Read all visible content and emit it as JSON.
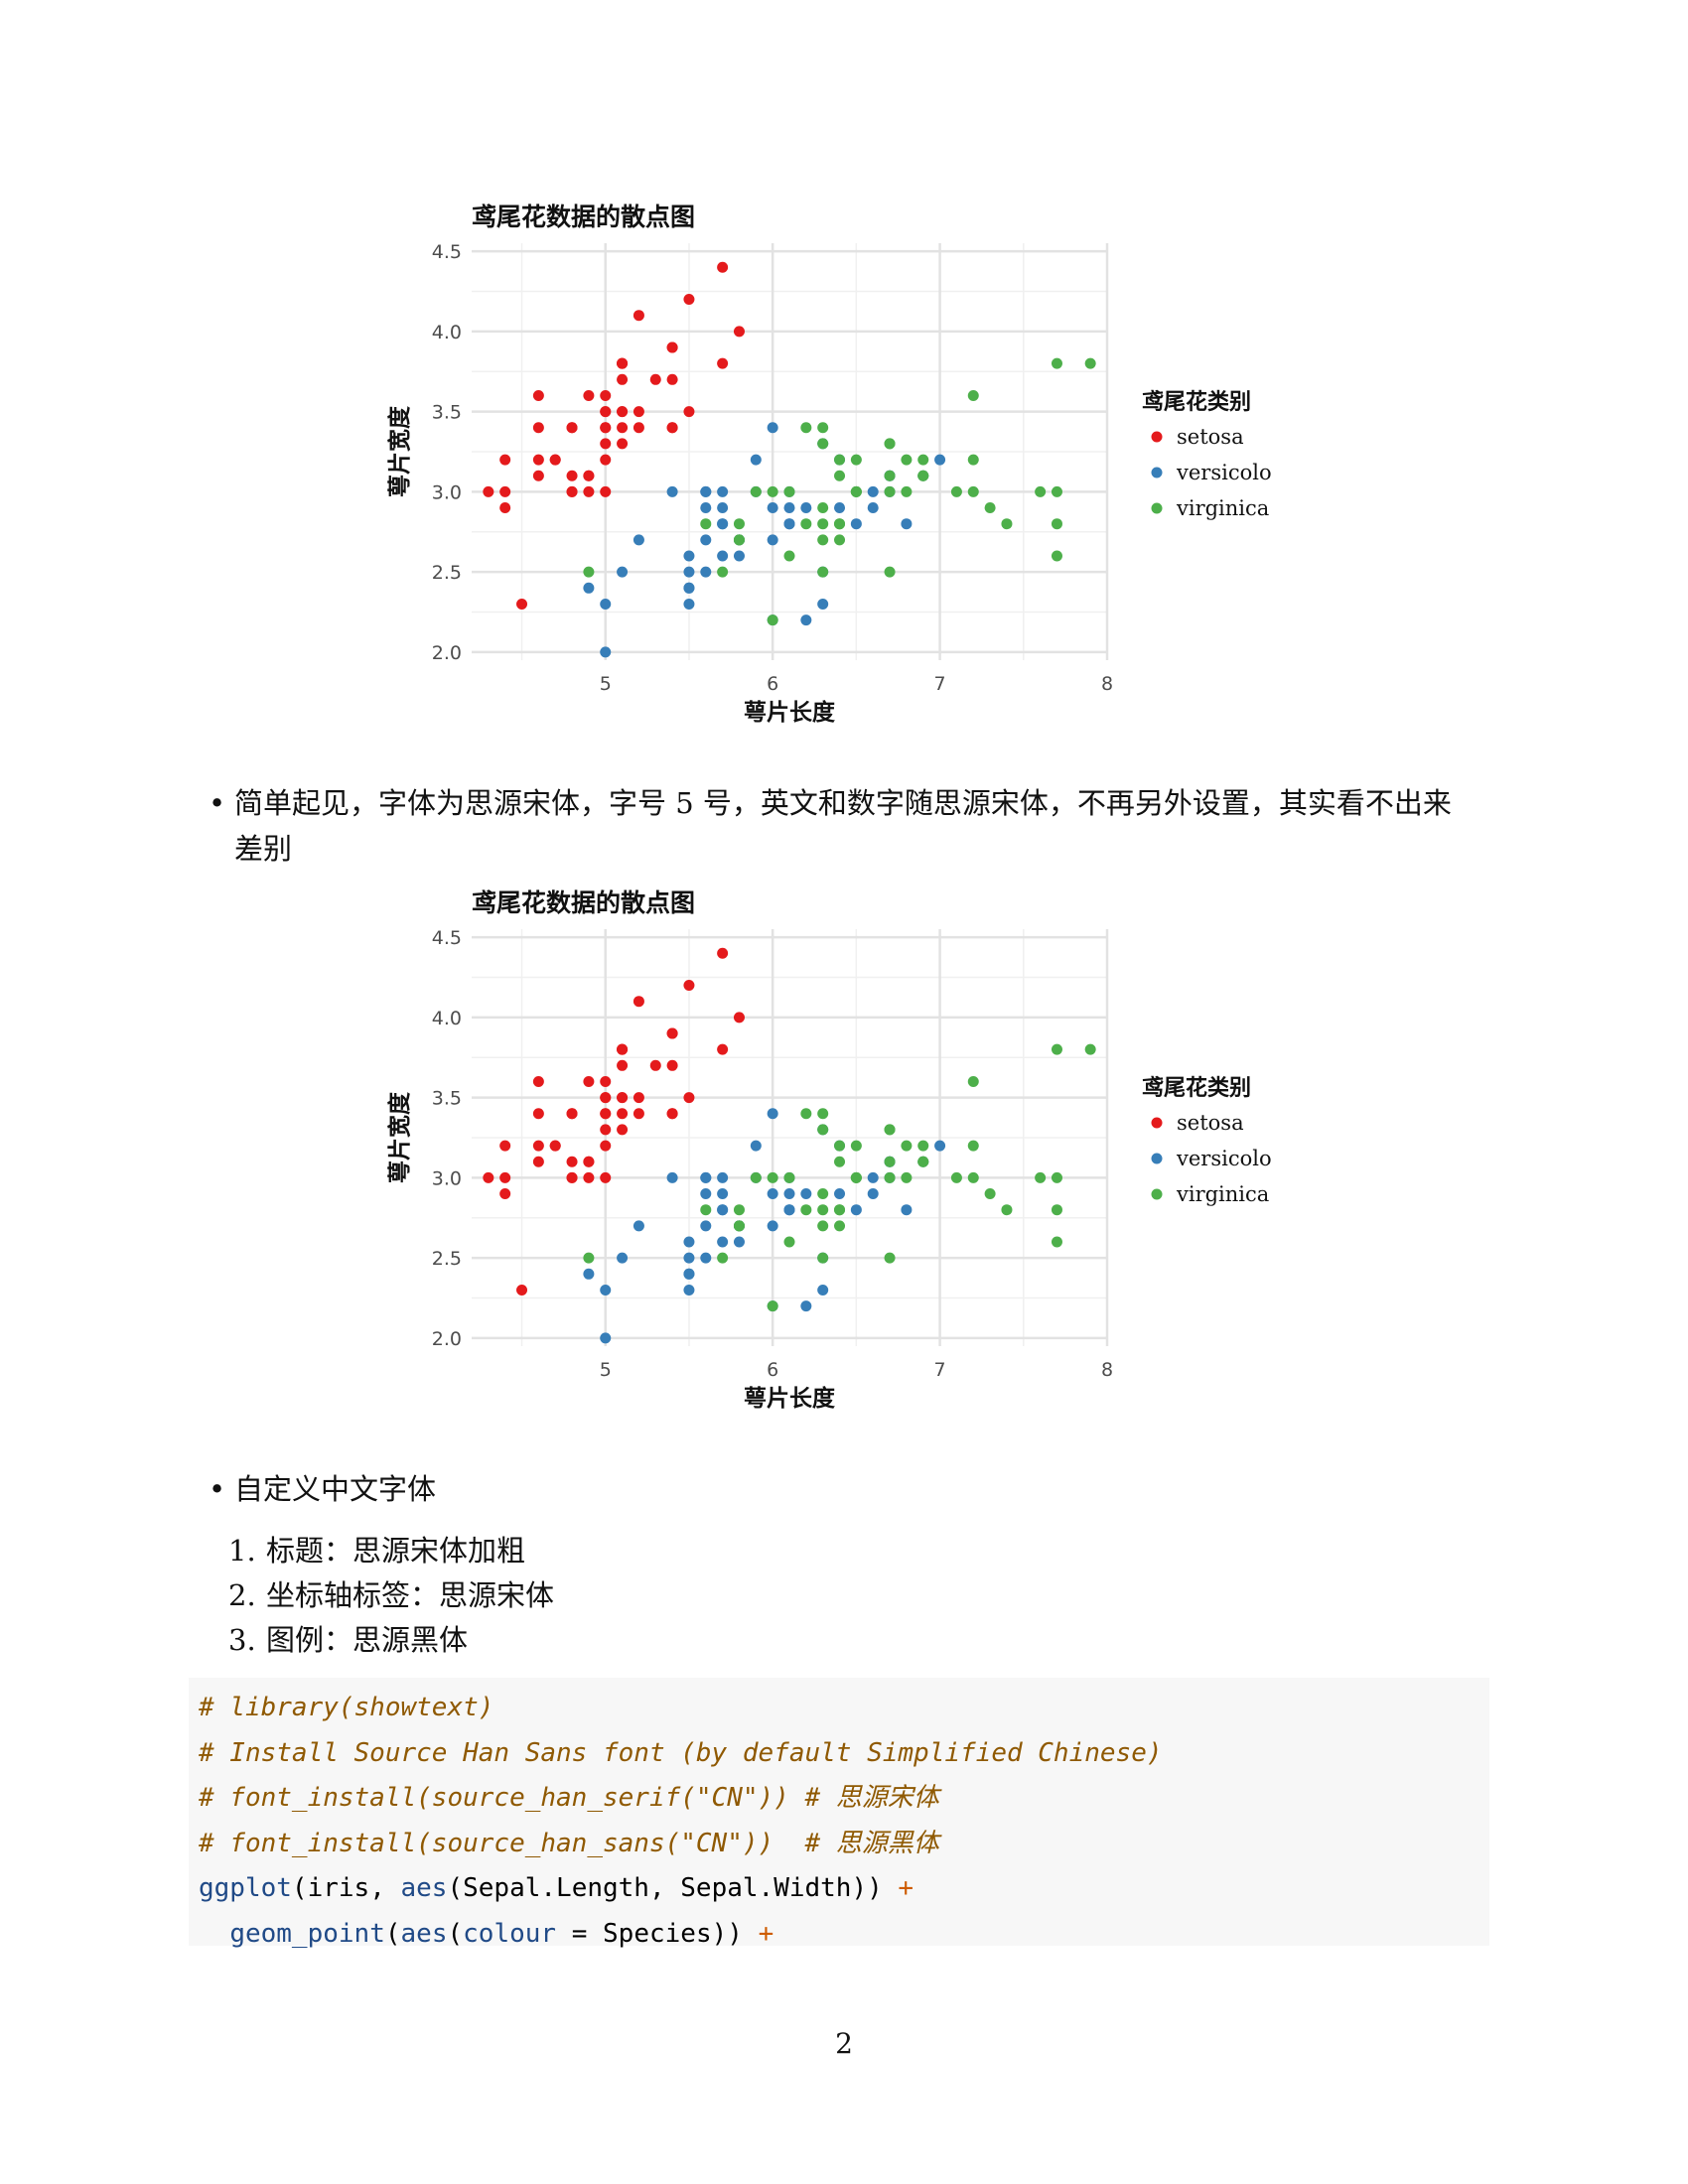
{
  "charts": [
    {
      "title": "鸢尾花数据的散点图",
      "xlabel": "萼片长度",
      "ylabel": "萼片宽度",
      "legend_title": "鸢尾花类别"
    },
    {
      "title": "鸢尾花数据的散点图",
      "xlabel": "萼片长度",
      "ylabel": "萼片宽度",
      "legend_title": "鸢尾花类别"
    }
  ],
  "chart_data": [
    {
      "type": "scatter",
      "title": "鸢尾花数据的散点图",
      "xlabel": "萼片长度",
      "ylabel": "萼片宽度",
      "xlim": [
        4.2,
        8.0
      ],
      "ylim": [
        2.0,
        4.5
      ],
      "x_ticks": [
        "5",
        "6",
        "7",
        "8"
      ],
      "y_ticks": [
        "2.0",
        "2.5",
        "3.0",
        "3.5",
        "4.0",
        "4.5"
      ],
      "grid": true,
      "legend_position": "right",
      "legend_title": "鸢尾花类别",
      "series": [
        {
          "name": "setosa",
          "color": "#e41a1c",
          "points": [
            [
              5.1,
              3.5
            ],
            [
              4.9,
              3.0
            ],
            [
              4.7,
              3.2
            ],
            [
              4.6,
              3.1
            ],
            [
              5.0,
              3.6
            ],
            [
              5.4,
              3.9
            ],
            [
              4.6,
              3.4
            ],
            [
              5.0,
              3.4
            ],
            [
              4.4,
              2.9
            ],
            [
              4.9,
              3.1
            ],
            [
              5.4,
              3.7
            ],
            [
              4.8,
              3.4
            ],
            [
              4.8,
              3.0
            ],
            [
              4.3,
              3.0
            ],
            [
              5.8,
              4.0
            ],
            [
              5.7,
              4.4
            ],
            [
              5.4,
              3.9
            ],
            [
              5.1,
              3.5
            ],
            [
              5.7,
              3.8
            ],
            [
              5.1,
              3.8
            ],
            [
              5.4,
              3.4
            ],
            [
              5.1,
              3.7
            ],
            [
              4.6,
              3.6
            ],
            [
              5.1,
              3.3
            ],
            [
              4.8,
              3.4
            ],
            [
              5.0,
              3.0
            ],
            [
              5.0,
              3.4
            ],
            [
              5.2,
              3.5
            ],
            [
              5.2,
              3.4
            ],
            [
              4.7,
              3.2
            ],
            [
              4.8,
              3.1
            ],
            [
              5.4,
              3.4
            ],
            [
              5.2,
              4.1
            ],
            [
              5.5,
              4.2
            ],
            [
              4.9,
              3.1
            ],
            [
              5.0,
              3.2
            ],
            [
              5.5,
              3.5
            ],
            [
              4.9,
              3.6
            ],
            [
              4.4,
              3.0
            ],
            [
              5.1,
              3.4
            ],
            [
              5.0,
              3.5
            ],
            [
              4.5,
              2.3
            ],
            [
              4.4,
              3.2
            ],
            [
              5.0,
              3.5
            ],
            [
              5.1,
              3.8
            ],
            [
              4.8,
              3.0
            ],
            [
              5.1,
              3.8
            ],
            [
              4.6,
              3.2
            ],
            [
              5.3,
              3.7
            ],
            [
              5.0,
              3.3
            ]
          ]
        },
        {
          "name": "versicolor",
          "color": "#377eb8",
          "points": [
            [
              7.0,
              3.2
            ],
            [
              6.4,
              3.2
            ],
            [
              6.9,
              3.1
            ],
            [
              5.5,
              2.3
            ],
            [
              6.5,
              2.8
            ],
            [
              5.7,
              2.8
            ],
            [
              6.3,
              3.3
            ],
            [
              4.9,
              2.4
            ],
            [
              6.6,
              2.9
            ],
            [
              5.2,
              2.7
            ],
            [
              5.0,
              2.0
            ],
            [
              5.9,
              3.0
            ],
            [
              6.0,
              2.2
            ],
            [
              6.1,
              2.9
            ],
            [
              5.6,
              2.9
            ],
            [
              6.7,
              3.1
            ],
            [
              5.6,
              3.0
            ],
            [
              5.8,
              2.7
            ],
            [
              6.2,
              2.2
            ],
            [
              5.6,
              2.5
            ],
            [
              5.9,
              3.2
            ],
            [
              6.1,
              2.8
            ],
            [
              6.3,
              2.5
            ],
            [
              6.1,
              2.8
            ],
            [
              6.4,
              2.9
            ],
            [
              6.6,
              3.0
            ],
            [
              6.8,
              2.8
            ],
            [
              6.7,
              3.0
            ],
            [
              6.0,
              2.9
            ],
            [
              5.7,
              2.6
            ],
            [
              5.5,
              2.4
            ],
            [
              5.5,
              2.4
            ],
            [
              5.8,
              2.7
            ],
            [
              6.0,
              2.7
            ],
            [
              5.4,
              3.0
            ],
            [
              6.0,
              3.4
            ],
            [
              6.7,
              3.1
            ],
            [
              6.3,
              2.3
            ],
            [
              5.6,
              3.0
            ],
            [
              5.5,
              2.5
            ],
            [
              5.5,
              2.6
            ],
            [
              6.1,
              3.0
            ],
            [
              5.8,
              2.6
            ],
            [
              5.0,
              2.3
            ],
            [
              5.6,
              2.7
            ],
            [
              5.7,
              3.0
            ],
            [
              5.7,
              2.9
            ],
            [
              6.2,
              2.9
            ],
            [
              5.1,
              2.5
            ],
            [
              5.7,
              2.8
            ]
          ]
        },
        {
          "name": "virginica",
          "color": "#4daf4a",
          "points": [
            [
              6.3,
              3.3
            ],
            [
              5.8,
              2.7
            ],
            [
              7.1,
              3.0
            ],
            [
              6.3,
              2.9
            ],
            [
              6.5,
              3.0
            ],
            [
              7.6,
              3.0
            ],
            [
              4.9,
              2.5
            ],
            [
              7.3,
              2.9
            ],
            [
              6.7,
              2.5
            ],
            [
              7.2,
              3.6
            ],
            [
              6.5,
              3.2
            ],
            [
              6.4,
              2.7
            ],
            [
              6.8,
              3.0
            ],
            [
              5.7,
              2.5
            ],
            [
              5.8,
              2.8
            ],
            [
              6.4,
              3.2
            ],
            [
              6.5,
              3.0
            ],
            [
              7.7,
              3.8
            ],
            [
              7.7,
              2.6
            ],
            [
              6.0,
              2.2
            ],
            [
              6.9,
              3.2
            ],
            [
              5.6,
              2.8
            ],
            [
              7.7,
              2.8
            ],
            [
              6.3,
              2.7
            ],
            [
              6.7,
              3.3
            ],
            [
              7.2,
              3.2
            ],
            [
              6.2,
              2.8
            ],
            [
              6.1,
              3.0
            ],
            [
              6.4,
              2.8
            ],
            [
              7.2,
              3.0
            ],
            [
              7.4,
              2.8
            ],
            [
              7.9,
              3.8
            ],
            [
              6.4,
              2.8
            ],
            [
              6.3,
              2.8
            ],
            [
              6.1,
              2.6
            ],
            [
              7.7,
              3.0
            ],
            [
              6.3,
              3.4
            ],
            [
              6.4,
              3.1
            ],
            [
              6.0,
              3.0
            ],
            [
              6.9,
              3.1
            ],
            [
              6.7,
              3.1
            ],
            [
              6.9,
              3.1
            ],
            [
              5.8,
              2.7
            ],
            [
              6.8,
              3.2
            ],
            [
              6.7,
              3.3
            ],
            [
              6.7,
              3.0
            ],
            [
              6.3,
              2.5
            ],
            [
              6.5,
              3.0
            ],
            [
              6.2,
              3.4
            ],
            [
              5.9,
              3.0
            ]
          ]
        }
      ]
    }
  ],
  "bullet1": {
    "line1": "简单起见，字体为思源宋体，字号 5 号，英文和数字随思源宋体，不再另外设置，其实看不出来",
    "line2": "差别"
  },
  "bullet2": {
    "text": "自定义中文字体"
  },
  "ordered_list": [
    {
      "num": "1.",
      "text": "标题：思源宋体加粗"
    },
    {
      "num": "2.",
      "text": "坐标轴标签：思源宋体"
    },
    {
      "num": "3.",
      "text": "图例：思源黑体"
    }
  ],
  "code": {
    "l1": "# library(showtext)",
    "l2": "# Install Source Han Sans font (by default Simplified Chinese)",
    "l3": "# font_install(source_han_serif(\"CN\")) # 思源宋体",
    "l4": "# font_install(source_han_sans(\"CN\"))  # 思源黑体",
    "l5_fn": "ggplot",
    "l5_a": "(iris, ",
    "l5_fn2": "aes",
    "l5_b": "(Sepal.Length, Sepal.Width)) ",
    "l5_op": "+",
    "l6_indent": "  ",
    "l6_fn": "geom_point",
    "l6_a": "(",
    "l6_fn2": "aes",
    "l6_b": "(",
    "l6_arg": "colour",
    "l6_c": " = Species)) ",
    "l6_op": "+"
  },
  "page_number": "2"
}
